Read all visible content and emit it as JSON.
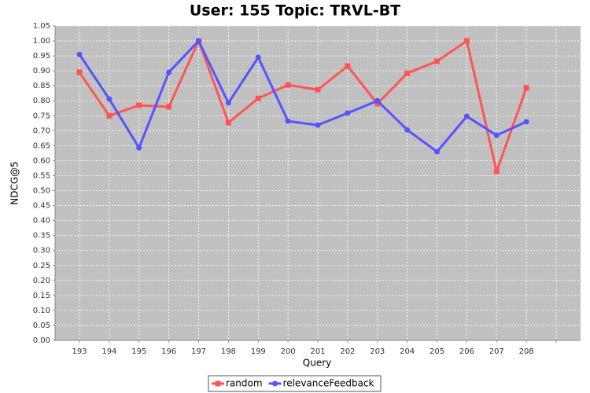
{
  "chart_data": {
    "type": "line",
    "title": "User: 155 Topic: TRVL-BT",
    "x_label": "Query",
    "y_label": "NDCG@5",
    "categories": [
      "193",
      "194",
      "195",
      "196",
      "197",
      "198",
      "199",
      "200",
      "201",
      "202",
      "203",
      "204",
      "205",
      "206",
      "207",
      "208",
      null
    ],
    "series": [
      {
        "name": "random",
        "color": "#ff5555",
        "marker": "square",
        "values": [
          0.895,
          0.75,
          0.785,
          0.78,
          1.0,
          0.727,
          0.808,
          0.853,
          0.837,
          0.916,
          0.79,
          0.892,
          0.932,
          1.0,
          0.564,
          0.843,
          null
        ]
      },
      {
        "name": "relevanceFeedback",
        "color": "#5555ff",
        "marker": "circle",
        "values": [
          0.955,
          0.806,
          0.643,
          0.895,
          1.0,
          0.793,
          0.945,
          0.732,
          0.719,
          0.759,
          0.8,
          0.703,
          0.63,
          0.748,
          0.685,
          0.73,
          null
        ]
      }
    ],
    "ylim": [
      0,
      1.05
    ],
    "yticks": [
      {
        "value": 0,
        "label": "0.00"
      },
      {
        "value": 0.05,
        "label": "0.05"
      },
      {
        "value": 0.1,
        "label": "0.10"
      },
      {
        "value": 0.15,
        "label": "0.15"
      },
      {
        "value": 0.2,
        "label": "0.20"
      },
      {
        "value": 0.25,
        "label": "0.25"
      },
      {
        "value": 0.3,
        "label": "0.30"
      },
      {
        "value": 0.35,
        "label": "0.35"
      },
      {
        "value": 0.4,
        "label": "0.40"
      },
      {
        "value": 0.45,
        "label": "0.45"
      },
      {
        "value": 0.5,
        "label": "0.50"
      },
      {
        "value": 0.55,
        "label": "0.55"
      },
      {
        "value": 0.6,
        "label": "0.60"
      },
      {
        "value": 0.65,
        "label": "0.65"
      },
      {
        "value": 0.7,
        "label": "0.70"
      },
      {
        "value": 0.75,
        "label": "0.75"
      },
      {
        "value": 0.8,
        "label": "0.80"
      },
      {
        "value": 0.85,
        "label": "0.85"
      },
      {
        "value": 0.9,
        "label": "0.90"
      },
      {
        "value": 0.95,
        "label": "0.95"
      },
      {
        "value": 1.0,
        "label": "1.00"
      },
      {
        "value": 1.05,
        "label": "1.05"
      }
    ],
    "grid": true,
    "legend": "bottom"
  }
}
